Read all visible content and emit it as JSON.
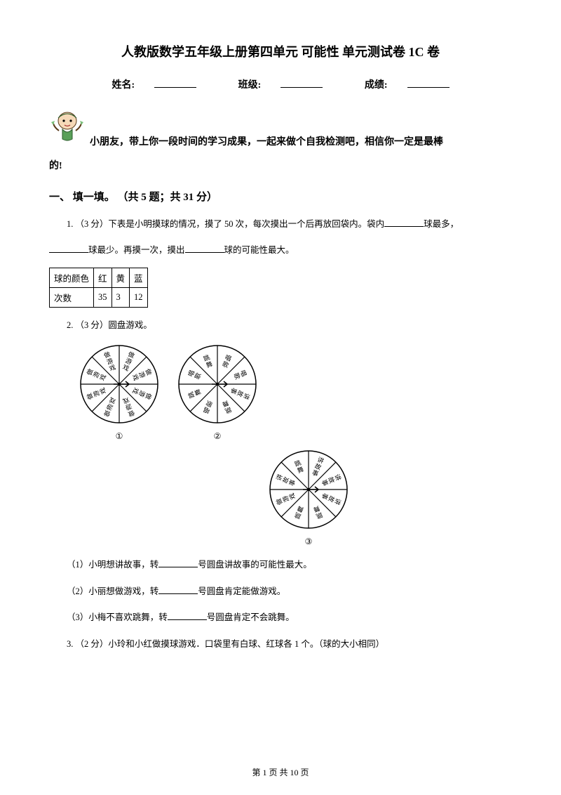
{
  "title": "人教版数学五年级上册第四单元 可能性 单元测试卷 1C 卷",
  "info": {
    "name_label": "姓名:",
    "class_label": "班级:",
    "score_label": "成绩:"
  },
  "intro_line1": "小朋友，带上你一段时间的学习成果，一起来做个自我检测吧，相信你一定是最棒",
  "intro_line2": "的!",
  "section1_heading": "一、 填一填。 （共 5 题；共 31 分）",
  "q1_a": "1. （3 分）下表是小明摸球的情况，摸了 50 次，每次摸出一个后再放回袋内。袋内",
  "q1_b": "球最多，",
  "q1_c": "球最少。再摸一次，摸出",
  "q1_d": "球的可能性最大。",
  "table": {
    "headers": [
      "球的颜色",
      "红",
      "黄",
      "蓝"
    ],
    "row2": [
      "次数",
      "35",
      "3",
      "12"
    ]
  },
  "q2": "2. （3 分）圆盘游戏。",
  "spinners": {
    "s1_labels": [
      "做游戏",
      "做游戏",
      "做游戏",
      "做游戏",
      "做游戏",
      "做游戏",
      "做游戏",
      "做游戏"
    ],
    "s2_labels": [
      "唱歌",
      "唱歌",
      "讲故事",
      "跳舞",
      "唱歌",
      "跳舞",
      "唱歌",
      "跳舞"
    ],
    "s3_labels": [
      "讲故事",
      "讲故事",
      "讲故事",
      "跳舞",
      "跳舞",
      "做游戏",
      "讲故事",
      "跳舞"
    ],
    "label1": "①",
    "label2": "②",
    "label3": "③",
    "stroke": "#000000",
    "fill": "#ffffff",
    "fontsize": 9
  },
  "q2_1a": "（1）小明想讲故事，转",
  "q2_1b": "号圆盘讲故事的可能性最大。",
  "q2_2a": "（2）小丽想做游戏，转",
  "q2_2b": "号圆盘肯定能做游戏。",
  "q2_3a": "（3）小梅不喜欢跳舞，转",
  "q2_3b": "号圆盘肯定不会跳舞。",
  "q3": "3. （2 分）小玲和小红做摸球游戏．口袋里有白球、红球各 1 个。（球的大小相同）",
  "footer": "第 1 页 共 10 页"
}
